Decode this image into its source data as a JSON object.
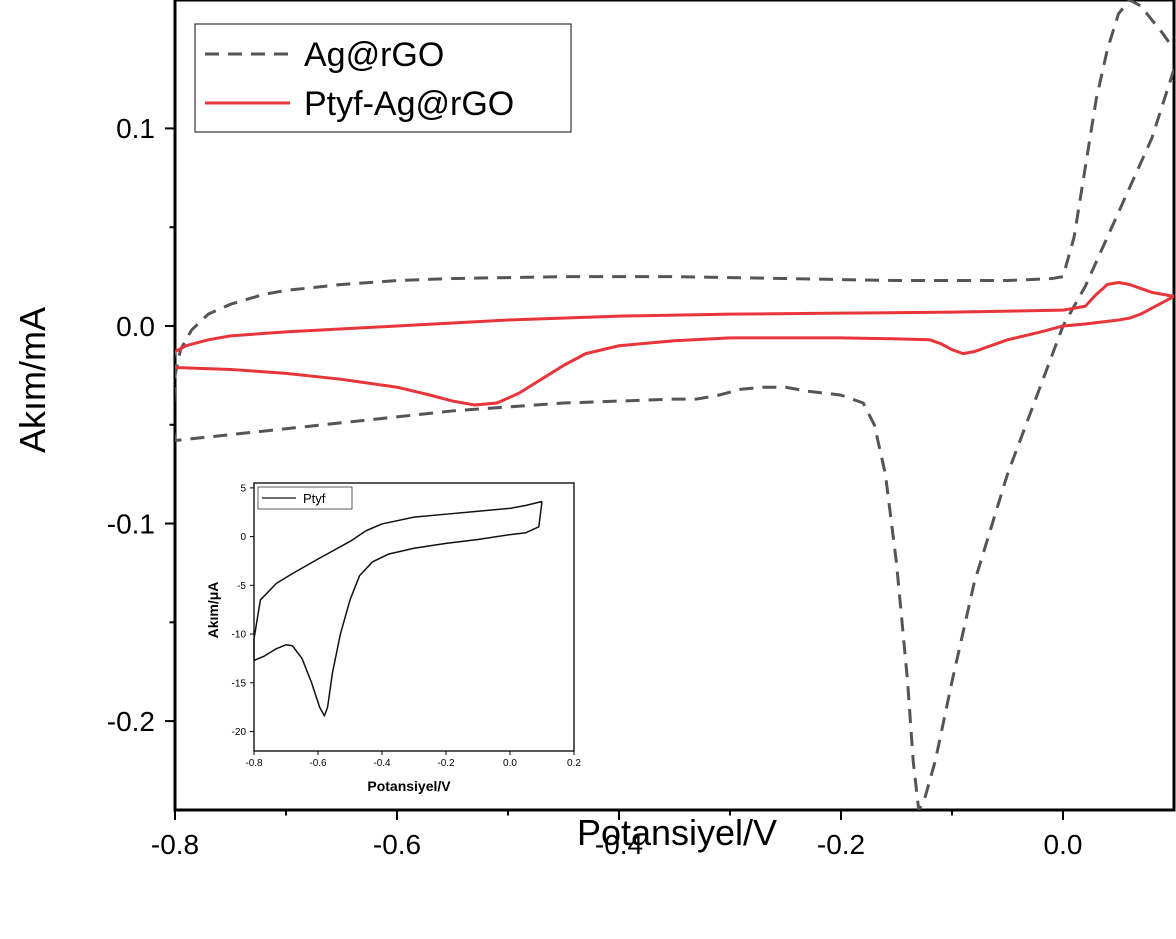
{
  "chart_data": [
    {
      "type": "line",
      "title": "",
      "xlabel": "Potansiyel/V",
      "ylabel": "Akım/mA",
      "xlim": [
        -0.8,
        0.1
      ],
      "ylim": [
        -0.245,
        0.165
      ],
      "x_ticks": [
        "-0.8",
        "-0.6",
        "-0.4",
        "-0.2",
        "0.0"
      ],
      "x_tick_values": [
        -0.8,
        -0.6,
        -0.4,
        -0.2,
        0.0
      ],
      "y_ticks": [
        "0.1",
        "0.0",
        "-0.1",
        "-0.2"
      ],
      "y_tick_values": [
        0.1,
        0.0,
        -0.1,
        -0.2
      ],
      "legend_position": "top-left",
      "grid": false,
      "series": [
        {
          "name": "Ag@rGO",
          "color": "#555555",
          "style": "dashed",
          "points": [
            [
              0.1,
              0.13
            ],
            [
              0.08,
              0.095
            ],
            [
              0.06,
              0.07
            ],
            [
              0.04,
              0.045
            ],
            [
              0.02,
              0.02
            ],
            [
              0.0,
              0.0
            ],
            [
              -0.02,
              -0.03
            ],
            [
              -0.05,
              -0.075
            ],
            [
              -0.08,
              -0.13
            ],
            [
              -0.1,
              -0.18
            ],
            [
              -0.115,
              -0.22
            ],
            [
              -0.125,
              -0.24
            ],
            [
              -0.13,
              -0.245
            ],
            [
              -0.135,
              -0.22
            ],
            [
              -0.14,
              -0.18
            ],
            [
              -0.15,
              -0.12
            ],
            [
              -0.16,
              -0.075
            ],
            [
              -0.17,
              -0.05
            ],
            [
              -0.18,
              -0.039
            ],
            [
              -0.2,
              -0.035
            ],
            [
              -0.23,
              -0.033
            ],
            [
              -0.25,
              -0.031
            ],
            [
              -0.27,
              -0.031
            ],
            [
              -0.29,
              -0.032
            ],
            [
              -0.31,
              -0.035
            ],
            [
              -0.33,
              -0.037
            ],
            [
              -0.35,
              -0.037
            ],
            [
              -0.4,
              -0.038
            ],
            [
              -0.45,
              -0.039
            ],
            [
              -0.5,
              -0.041
            ],
            [
              -0.55,
              -0.043
            ],
            [
              -0.6,
              -0.046
            ],
            [
              -0.65,
              -0.049
            ],
            [
              -0.7,
              -0.052
            ],
            [
              -0.75,
              -0.055
            ],
            [
              -0.8,
              -0.058
            ],
            [
              -0.802,
              -0.05
            ],
            [
              -0.8,
              -0.025
            ],
            [
              -0.795,
              -0.012
            ],
            [
              -0.785,
              -0.002
            ],
            [
              -0.77,
              0.006
            ],
            [
              -0.75,
              0.011
            ],
            [
              -0.72,
              0.016
            ],
            [
              -0.7,
              0.018
            ],
            [
              -0.65,
              0.021
            ],
            [
              -0.6,
              0.023
            ],
            [
              -0.55,
              0.024
            ],
            [
              -0.5,
              0.0245
            ],
            [
              -0.45,
              0.025
            ],
            [
              -0.4,
              0.025
            ],
            [
              -0.35,
              0.025
            ],
            [
              -0.3,
              0.0245
            ],
            [
              -0.25,
              0.024
            ],
            [
              -0.2,
              0.0235
            ],
            [
              -0.15,
              0.023
            ],
            [
              -0.1,
              0.023
            ],
            [
              -0.05,
              0.023
            ],
            [
              -0.01,
              0.024
            ],
            [
              0.0,
              0.025
            ],
            [
              0.01,
              0.045
            ],
            [
              0.02,
              0.08
            ],
            [
              0.03,
              0.115
            ],
            [
              0.04,
              0.14
            ],
            [
              0.05,
              0.158
            ],
            [
              0.06,
              0.165
            ],
            [
              0.07,
              0.162
            ],
            [
              0.08,
              0.155
            ],
            [
              0.09,
              0.148
            ],
            [
              0.1,
              0.14
            ]
          ]
        },
        {
          "name": "Ptyf-Ag@rGO",
          "color": "#e8353a",
          "style": "solid",
          "points": [
            [
              0.1,
              0.015
            ],
            [
              0.09,
              0.012
            ],
            [
              0.08,
              0.009
            ],
            [
              0.07,
              0.006
            ],
            [
              0.06,
              0.004
            ],
            [
              0.05,
              0.003
            ],
            [
              0.02,
              0.001
            ],
            [
              0.0,
              0.0
            ],
            [
              -0.02,
              -0.003
            ],
            [
              -0.05,
              -0.007
            ],
            [
              -0.07,
              -0.011
            ],
            [
              -0.08,
              -0.013
            ],
            [
              -0.09,
              -0.014
            ],
            [
              -0.1,
              -0.012
            ],
            [
              -0.11,
              -0.009
            ],
            [
              -0.12,
              -0.007
            ],
            [
              -0.15,
              -0.0065
            ],
            [
              -0.2,
              -0.006
            ],
            [
              -0.3,
              -0.006
            ],
            [
              -0.35,
              -0.0075
            ],
            [
              -0.4,
              -0.01
            ],
            [
              -0.43,
              -0.014
            ],
            [
              -0.45,
              -0.02
            ],
            [
              -0.47,
              -0.027
            ],
            [
              -0.49,
              -0.034
            ],
            [
              -0.51,
              -0.039
            ],
            [
              -0.53,
              -0.04
            ],
            [
              -0.55,
              -0.038
            ],
            [
              -0.57,
              -0.035
            ],
            [
              -0.6,
              -0.031
            ],
            [
              -0.65,
              -0.027
            ],
            [
              -0.7,
              -0.024
            ],
            [
              -0.75,
              -0.022
            ],
            [
              -0.8,
              -0.021
            ],
            [
              -0.802,
              -0.018
            ],
            [
              -0.8,
              -0.013
            ],
            [
              -0.79,
              -0.01
            ],
            [
              -0.77,
              -0.007
            ],
            [
              -0.75,
              -0.005
            ],
            [
              -0.7,
              -0.003
            ],
            [
              -0.6,
              0.0
            ],
            [
              -0.5,
              0.003
            ],
            [
              -0.4,
              0.005
            ],
            [
              -0.3,
              0.006
            ],
            [
              -0.2,
              0.0065
            ],
            [
              -0.1,
              0.007
            ],
            [
              0.0,
              0.008
            ],
            [
              0.02,
              0.01
            ],
            [
              0.03,
              0.016
            ],
            [
              0.04,
              0.021
            ],
            [
              0.05,
              0.022
            ],
            [
              0.06,
              0.021
            ],
            [
              0.07,
              0.019
            ],
            [
              0.08,
              0.017
            ],
            [
              0.1,
              0.015
            ]
          ]
        }
      ]
    },
    {
      "type": "line",
      "title": "",
      "xlabel": "Potansiyel/V",
      "ylabel": "Akım/μA",
      "xlim": [
        -0.8,
        0.2
      ],
      "ylim": [
        -22,
        5.5
      ],
      "x_ticks": [
        "-0.8",
        "-0.6",
        "-0.4",
        "-0.2",
        "0.0",
        "0.2"
      ],
      "x_tick_values": [
        -0.8,
        -0.6,
        -0.4,
        -0.2,
        0.0,
        0.2
      ],
      "y_ticks": [
        "5",
        "0",
        "-5",
        "-10",
        "-15",
        "-20"
      ],
      "y_tick_values": [
        5,
        0,
        -5,
        -10,
        -15,
        -20
      ],
      "legend_position": "top-left",
      "grid": false,
      "series": [
        {
          "name": "Ptyf",
          "color": "#111111",
          "style": "solid",
          "points": [
            [
              0.1,
              3.6
            ],
            [
              0.09,
              1.0
            ],
            [
              0.05,
              0.4
            ],
            [
              0.0,
              0.2
            ],
            [
              -0.1,
              -0.3
            ],
            [
              -0.2,
              -0.7
            ],
            [
              -0.3,
              -1.2
            ],
            [
              -0.38,
              -1.8
            ],
            [
              -0.43,
              -2.6
            ],
            [
              -0.47,
              -4.0
            ],
            [
              -0.5,
              -6.5
            ],
            [
              -0.53,
              -10.0
            ],
            [
              -0.555,
              -14.0
            ],
            [
              -0.57,
              -17.5
            ],
            [
              -0.58,
              -18.4
            ],
            [
              -0.595,
              -17.5
            ],
            [
              -0.62,
              -15.0
            ],
            [
              -0.65,
              -12.5
            ],
            [
              -0.68,
              -11.2
            ],
            [
              -0.7,
              -11.1
            ],
            [
              -0.73,
              -11.5
            ],
            [
              -0.77,
              -12.3
            ],
            [
              -0.8,
              -12.7
            ],
            [
              -0.8,
              -10.5
            ],
            [
              -0.78,
              -6.5
            ],
            [
              -0.73,
              -4.8
            ],
            [
              -0.68,
              -3.8
            ],
            [
              -0.6,
              -2.3
            ],
            [
              -0.5,
              -0.5
            ],
            [
              -0.45,
              0.6
            ],
            [
              -0.4,
              1.3
            ],
            [
              -0.3,
              2.0
            ],
            [
              -0.2,
              2.3
            ],
            [
              -0.1,
              2.6
            ],
            [
              0.0,
              2.9
            ],
            [
              0.05,
              3.2
            ],
            [
              0.1,
              3.6
            ]
          ]
        }
      ]
    }
  ]
}
